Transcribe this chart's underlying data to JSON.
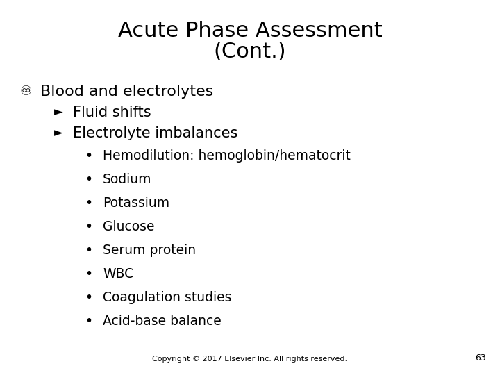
{
  "title_line1": "Acute Phase Assessment",
  "title_line2": "(Cont.)",
  "title_fontsize": 22,
  "bg_color": "#ffffff",
  "text_color": "#000000",
  "bullet1_marker": "♾",
  "bullet1": "Blood and electrolytes",
  "bullet1_fontsize": 16,
  "sub_bullet_marker": "►",
  "sub_bullet1": "Fluid shifts",
  "sub_bullet2": "Electrolyte imbalances",
  "sub_fontsize": 15,
  "items": [
    "Hemodilution: hemoglobin/hematocrit",
    "Sodium",
    "Potassium",
    "Glucose",
    "Serum protein",
    "WBC",
    "Coagulation studies",
    "Acid-base balance"
  ],
  "item_fontsize": 13.5,
  "bullet_marker": "•",
  "footer": "Copyright © 2017 Elsevier Inc. All rights reserved.",
  "footer_fontsize": 8,
  "page_number": "63",
  "page_number_fontsize": 9
}
